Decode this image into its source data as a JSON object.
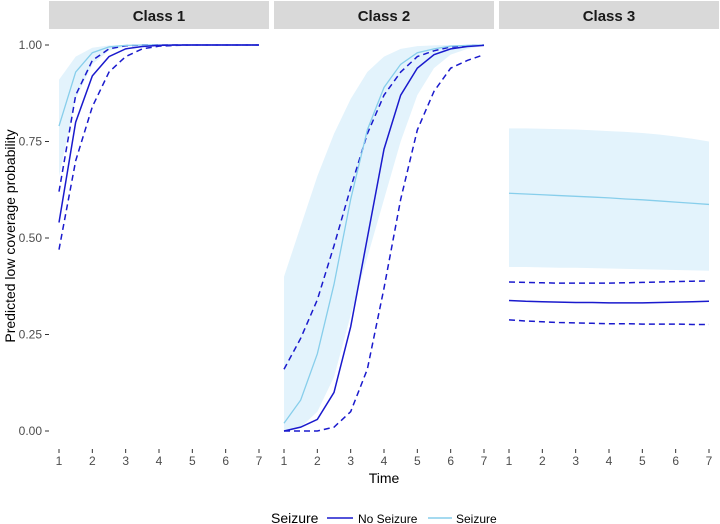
{
  "chart_data": {
    "type": "line",
    "xlabel": "Time",
    "ylabel": "Predicted low coverage probability",
    "xlim": [
      1,
      7
    ],
    "ylim": [
      0,
      1
    ],
    "x_ticks": [
      "1",
      "2",
      "3",
      "4",
      "5",
      "6",
      "7"
    ],
    "y_ticks": [
      "0.00",
      "0.25",
      "0.50",
      "0.75",
      "1.00"
    ],
    "grid": false,
    "legend": {
      "title": "Seizure",
      "position": "bottom",
      "entries": [
        "No Seizure",
        "Seizure"
      ]
    },
    "colors": {
      "No Seizure": "#1a1acd",
      "Seizure": "#87ceeb",
      "ribbon": "#e3f3fc"
    },
    "x": [
      1,
      1.5,
      2,
      2.5,
      3,
      3.5,
      4,
      4.5,
      5,
      5.5,
      6,
      6.5,
      7
    ],
    "panels": [
      {
        "title": "Class 1",
        "series": [
          {
            "name": "No Seizure",
            "values": [
              0.54,
              0.8,
              0.92,
              0.97,
              0.99,
              0.996,
              0.999,
              1.0,
              1.0,
              1.0,
              1.0,
              1.0,
              1.0
            ],
            "lower": [
              0.47,
              0.7,
              0.84,
              0.93,
              0.97,
              0.99,
              0.997,
              0.999,
              1.0,
              1.0,
              1.0,
              1.0,
              1.0
            ],
            "upper": [
              0.62,
              0.87,
              0.96,
              0.99,
              0.998,
              1.0,
              1.0,
              1.0,
              1.0,
              1.0,
              1.0,
              1.0,
              1.0
            ]
          },
          {
            "name": "Seizure",
            "values": [
              0.79,
              0.93,
              0.98,
              0.995,
              0.999,
              1.0,
              1.0,
              1.0,
              1.0,
              1.0,
              1.0,
              1.0,
              1.0
            ],
            "lower": [
              0.66,
              0.86,
              0.95,
              0.985,
              0.996,
              0.999,
              1.0,
              1.0,
              1.0,
              1.0,
              1.0,
              1.0,
              1.0
            ],
            "upper": [
              0.91,
              0.97,
              0.993,
              0.999,
              1.0,
              1.0,
              1.0,
              1.0,
              1.0,
              1.0,
              1.0,
              1.0,
              1.0
            ]
          }
        ]
      },
      {
        "title": "Class 2",
        "series": [
          {
            "name": "No Seizure",
            "values": [
              0.0,
              0.01,
              0.03,
              0.1,
              0.27,
              0.5,
              0.73,
              0.87,
              0.94,
              0.975,
              0.99,
              0.996,
              0.999
            ],
            "lower": [
              0.0,
              0.0,
              0.0,
              0.01,
              0.05,
              0.16,
              0.37,
              0.6,
              0.78,
              0.88,
              0.94,
              0.96,
              0.975
            ],
            "upper": [
              0.16,
              0.24,
              0.34,
              0.48,
              0.63,
              0.77,
              0.87,
              0.93,
              0.97,
              0.985,
              0.995,
              0.998,
              1.0
            ]
          },
          {
            "name": "Seizure",
            "values": [
              0.02,
              0.08,
              0.2,
              0.38,
              0.6,
              0.78,
              0.89,
              0.95,
              0.98,
              0.99,
              0.997,
              0.999,
              1.0
            ],
            "lower": [
              0.0,
              0.01,
              0.05,
              0.14,
              0.3,
              0.45,
              0.6,
              0.75,
              0.87,
              0.94,
              0.975,
              0.99,
              0.998
            ],
            "upper": [
              0.4,
              0.53,
              0.66,
              0.77,
              0.86,
              0.93,
              0.97,
              0.99,
              0.997,
              0.999,
              1.0,
              1.0,
              1.0
            ]
          }
        ]
      },
      {
        "title": "Class 3",
        "series": [
          {
            "name": "No Seizure",
            "values": [
              0.338,
              0.336,
              0.335,
              0.334,
              0.333,
              0.333,
              0.332,
              0.332,
              0.332,
              0.333,
              0.334,
              0.335,
              0.336
            ],
            "lower": [
              0.288,
              0.285,
              0.283,
              0.281,
              0.28,
              0.279,
              0.278,
              0.278,
              0.277,
              0.277,
              0.277,
              0.276,
              0.276
            ],
            "upper": [
              0.386,
              0.385,
              0.384,
              0.383,
              0.383,
              0.383,
              0.383,
              0.384,
              0.385,
              0.386,
              0.387,
              0.388,
              0.389
            ]
          },
          {
            "name": "Seizure",
            "values": [
              0.616,
              0.614,
              0.612,
              0.61,
              0.608,
              0.606,
              0.604,
              0.601,
              0.599,
              0.596,
              0.593,
              0.59,
              0.587
            ],
            "lower": [
              0.425,
              0.425,
              0.424,
              0.423,
              0.423,
              0.422,
              0.421,
              0.42,
              0.419,
              0.418,
              0.417,
              0.416,
              0.415
            ],
            "upper": [
              0.784,
              0.784,
              0.783,
              0.782,
              0.781,
              0.779,
              0.777,
              0.775,
              0.772,
              0.768,
              0.763,
              0.757,
              0.75
            ]
          }
        ]
      }
    ]
  }
}
